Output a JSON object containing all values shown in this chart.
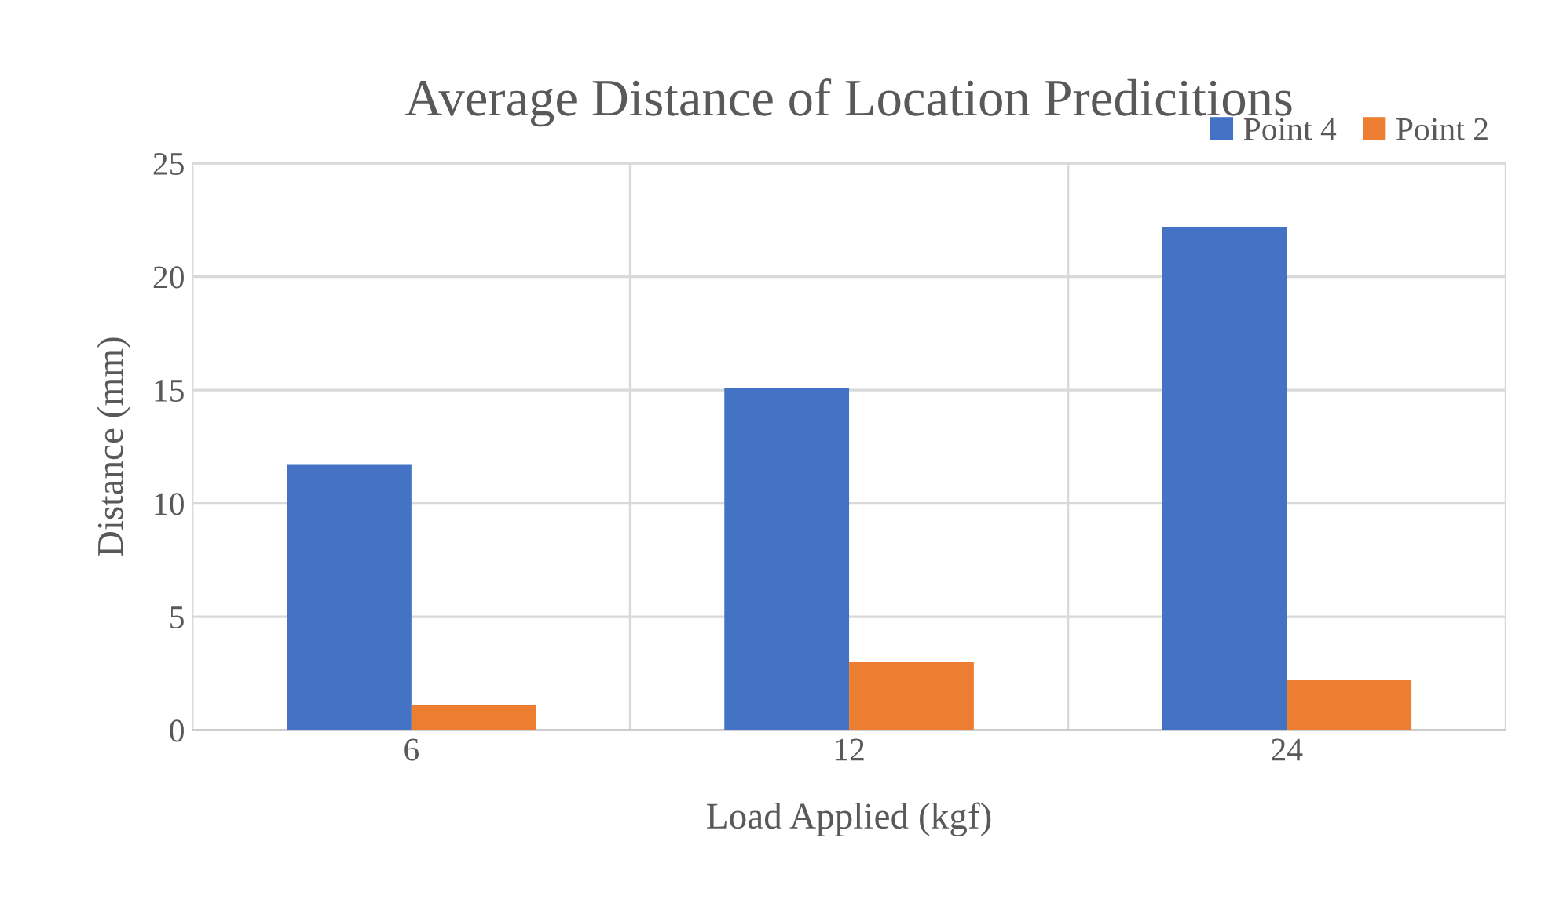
{
  "chart_data": {
    "type": "bar",
    "title": "Average Distance of Location Predicitions",
    "xlabel": "Load Applied (kgf)",
    "ylabel": "Distance (mm)",
    "categories": [
      "6",
      "12",
      "24"
    ],
    "series": [
      {
        "name": "Point 4",
        "color": "#4472c4",
        "values": [
          11.7,
          15.1,
          22.2
        ]
      },
      {
        "name": "Point 2",
        "color": "#ed7d31",
        "values": [
          1.1,
          3.0,
          2.2
        ]
      }
    ],
    "ylim": [
      0,
      25
    ],
    "yticks": [
      0,
      5,
      10,
      15,
      20,
      25
    ],
    "grid": true,
    "legend": "top right"
  }
}
